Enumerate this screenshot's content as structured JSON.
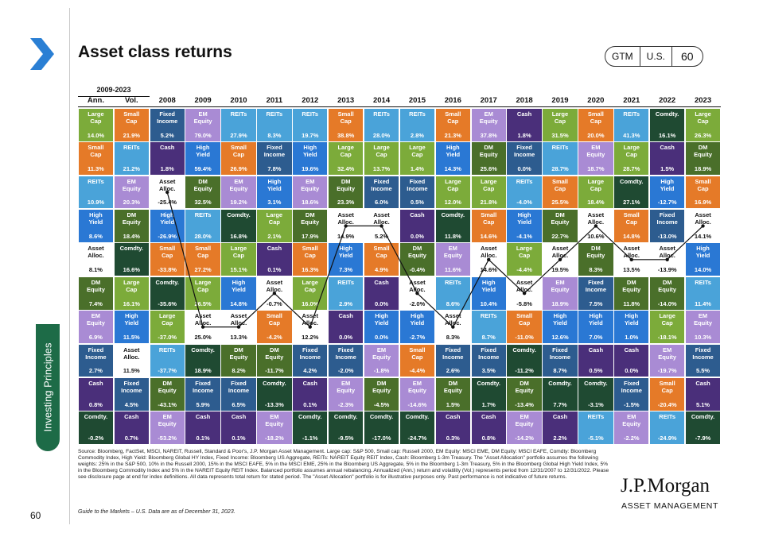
{
  "page": {
    "title": "Asset class returns",
    "badges": [
      "GTM",
      "U.S.",
      "60"
    ],
    "side_label": "Investing Principles",
    "page_number": "60",
    "source": "Source: Bloomberg, FactSet, MSCI, NAREIT, Russell, Standard & Poor's, J.P. Morgan Asset Management. Large cap: S&P 500, Small cap: Russell 2000, EM Equity: MSCI EME, DM Equity: MSCI EAFE, Comdty: Bloomberg Commodity Index, High Yield: Bloomberg Global HY Index, Fixed Income: Bloomberg US Aggregate, REITs: NAREIT Equity REIT Index, Cash: Bloomberg 1-3m Treasury. The \"Asset Allocation\" portfolio assumes the following weights: 25% in the S&P 500, 10% in the Russell 2000, 15% in the MSCI EAFE, 5% in the MSCI EME, 25% in the Bloomberg US Aggregate, 5% in the Bloomberg 1-3m Treasury, 5% in the Bloomberg Global High Yield Index, 5% in the Bloomberg Commodity Index and 5% in the NAREIT Equity REIT Index. Balanced portfolio assumes annual rebalancing. Annualized (Ann.) return and volatility (Vol.) represents period from 12/31/2007 to 12/31/2022. Please see disclosure page at end for index definitions. All data represents total return for stated period. The \"Asset Allocation\" portfolio is for illustrative purposes only. Past performance is not indicative of future returns.",
    "footer": "Guide to the Markets – U.S. Data are as of December 31, 2023.",
    "logo": "J.P.Morgan",
    "logo_sub": "ASSET MANAGEMENT"
  },
  "colors": {
    "Large Cap": "#7cab3a",
    "Small Cap": "#e57a28",
    "EM Equity": "#a98bd4",
    "REITs": "#4aa3d9",
    "Fixed Income": "#2d5c8f",
    "Cash": "#4a2f7a",
    "High Yield": "#2a78d4",
    "DM Equity": "#4a6f2a",
    "Comdty.": "#1f4a32",
    "Asset Alloc.": "#ffffff"
  },
  "chart_data": {
    "type": "table",
    "title": "Asset class returns",
    "period_label": "2009-2023",
    "columns": [
      "Ann.",
      "Vol.",
      "2008",
      "2009",
      "2010",
      "2011",
      "2012",
      "2013",
      "2014",
      "2015",
      "2016",
      "2017",
      "2018",
      "2019",
      "2020",
      "2021",
      "2022",
      "2023"
    ],
    "rows": [
      [
        [
          "Large Cap",
          "14.0%"
        ],
        [
          "Small Cap",
          "21.9%"
        ],
        [
          "Fixed Income",
          "5.2%"
        ],
        [
          "EM Equity",
          "79.0%"
        ],
        [
          "REITs",
          "27.9%"
        ],
        [
          "REITs",
          "8.3%"
        ],
        [
          "REITs",
          "19.7%"
        ],
        [
          "Small Cap",
          "38.8%"
        ],
        [
          "REITs",
          "28.0%"
        ],
        [
          "REITs",
          "2.8%"
        ],
        [
          "Small Cap",
          "21.3%"
        ],
        [
          "EM Equity",
          "37.8%"
        ],
        [
          "Cash",
          "1.8%"
        ],
        [
          "Large Cap",
          "31.5%"
        ],
        [
          "Small Cap",
          "20.0%"
        ],
        [
          "REITs",
          "41.3%"
        ],
        [
          "Comdty.",
          "16.1%"
        ],
        [
          "Large Cap",
          "26.3%"
        ]
      ],
      [
        [
          "Small Cap",
          "11.3%"
        ],
        [
          "REITs",
          "21.2%"
        ],
        [
          "Cash",
          "1.8%"
        ],
        [
          "High Yield",
          "59.4%"
        ],
        [
          "Small Cap",
          "26.9%"
        ],
        [
          "Fixed Income",
          "7.8%"
        ],
        [
          "High Yield",
          "19.6%"
        ],
        [
          "Large Cap",
          "32.4%"
        ],
        [
          "Large Cap",
          "13.7%"
        ],
        [
          "Large Cap",
          "1.4%"
        ],
        [
          "High Yield",
          "14.3%"
        ],
        [
          "DM Equity",
          "25.6%"
        ],
        [
          "Fixed Income",
          "0.0%"
        ],
        [
          "REITs",
          "28.7%"
        ],
        [
          "EM Equity",
          "18.7%"
        ],
        [
          "Large Cap",
          "28.7%"
        ],
        [
          "Cash",
          "1.5%"
        ],
        [
          "DM Equity",
          "18.9%"
        ]
      ],
      [
        [
          "REITs",
          "10.9%"
        ],
        [
          "EM Equity",
          "20.3%"
        ],
        [
          "Asset Alloc.",
          "-25.4%"
        ],
        [
          "DM Equity",
          "32.5%"
        ],
        [
          "EM Equity",
          "19.2%"
        ],
        [
          "High Yield",
          "3.1%"
        ],
        [
          "EM Equity",
          "18.6%"
        ],
        [
          "DM Equity",
          "23.3%"
        ],
        [
          "Fixed Income",
          "6.0%"
        ],
        [
          "Fixed Income",
          "0.5%"
        ],
        [
          "Large Cap",
          "12.0%"
        ],
        [
          "Large Cap",
          "21.8%"
        ],
        [
          "REITs",
          "-4.0%"
        ],
        [
          "Small Cap",
          "25.5%"
        ],
        [
          "Large Cap",
          "18.4%"
        ],
        [
          "Comdty.",
          "27.1%"
        ],
        [
          "High Yield",
          "-12.7%"
        ],
        [
          "Small Cap",
          "16.9%"
        ]
      ],
      [
        [
          "High Yield",
          "8.6%"
        ],
        [
          "DM Equity",
          "18.4%"
        ],
        [
          "High Yield",
          "-26.9%"
        ],
        [
          "REITs",
          "28.0%"
        ],
        [
          "Comdty.",
          "16.8%"
        ],
        [
          "Large Cap",
          "2.1%"
        ],
        [
          "DM Equity",
          "17.9%"
        ],
        [
          "Asset Alloc.",
          "14.9%"
        ],
        [
          "Asset Alloc.",
          "5.2%"
        ],
        [
          "Cash",
          "0.0%"
        ],
        [
          "Comdty.",
          "11.8%"
        ],
        [
          "Small Cap",
          "14.6%"
        ],
        [
          "High Yield",
          "-4.1%"
        ],
        [
          "DM Equity",
          "22.7%"
        ],
        [
          "Asset Alloc.",
          "10.6%"
        ],
        [
          "Small Cap",
          "14.8%"
        ],
        [
          "Fixed Income",
          "-13.0%"
        ],
        [
          "Asset Alloc.",
          "14.1%"
        ]
      ],
      [
        [
          "Asset Alloc.",
          "8.1%"
        ],
        [
          "Comdty.",
          "16.6%"
        ],
        [
          "Small Cap",
          "-33.8%"
        ],
        [
          "Small Cap",
          "27.2%"
        ],
        [
          "Large Cap",
          "15.1%"
        ],
        [
          "Cash",
          "0.1%"
        ],
        [
          "Small Cap",
          "16.3%"
        ],
        [
          "High Yield",
          "7.3%"
        ],
        [
          "Small Cap",
          "4.9%"
        ],
        [
          "DM Equity",
          "-0.4%"
        ],
        [
          "EM Equity",
          "11.6%"
        ],
        [
          "Asset Alloc.",
          "14.6%"
        ],
        [
          "Large Cap",
          "-4.4%"
        ],
        [
          "Asset Alloc.",
          "19.5%"
        ],
        [
          "DM Equity",
          "8.3%"
        ],
        [
          "Asset Alloc.",
          "13.5%"
        ],
        [
          "Asset Alloc.",
          "-13.9%"
        ],
        [
          "High Yield",
          "14.0%"
        ]
      ],
      [
        [
          "DM Equity",
          "7.4%"
        ],
        [
          "Large Cap",
          "16.1%"
        ],
        [
          "Comdty.",
          "-35.6%"
        ],
        [
          "Large Cap",
          "26.5%"
        ],
        [
          "High Yield",
          "14.8%"
        ],
        [
          "Asset Alloc.",
          "-0.7%"
        ],
        [
          "Large Cap",
          "16.0%"
        ],
        [
          "REITs",
          "2.9%"
        ],
        [
          "Cash",
          "0.0%"
        ],
        [
          "Asset Alloc.",
          "-2.0%"
        ],
        [
          "REITs",
          "8.6%"
        ],
        [
          "High Yield",
          "10.4%"
        ],
        [
          "Asset Alloc.",
          "-5.8%"
        ],
        [
          "EM Equity",
          "18.9%"
        ],
        [
          "Fixed Income",
          "7.5%"
        ],
        [
          "DM Equity",
          "11.8%"
        ],
        [
          "DM Equity",
          "-14.0%"
        ],
        [
          "REITs",
          "11.4%"
        ]
      ],
      [
        [
          "EM Equity",
          "6.9%"
        ],
        [
          "High Yield",
          "11.5%"
        ],
        [
          "Large Cap",
          "-37.0%"
        ],
        [
          "Asset Alloc.",
          "25.0%"
        ],
        [
          "Asset Alloc.",
          "13.3%"
        ],
        [
          "Small Cap",
          "-4.2%"
        ],
        [
          "Asset Alloc.",
          "12.2%"
        ],
        [
          "Cash",
          "0.0%"
        ],
        [
          "High Yield",
          "0.0%"
        ],
        [
          "High Yield",
          "-2.7%"
        ],
        [
          "Asset Alloc.",
          "8.3%"
        ],
        [
          "REITs",
          "8.7%"
        ],
        [
          "Small Cap",
          "-11.0%"
        ],
        [
          "High Yield",
          "12.6%"
        ],
        [
          "High Yield",
          "7.0%"
        ],
        [
          "High Yield",
          "1.0%"
        ],
        [
          "Large Cap",
          "-18.1%"
        ],
        [
          "EM Equity",
          "10.3%"
        ]
      ],
      [
        [
          "Fixed Income",
          "2.7%"
        ],
        [
          "Asset Alloc.",
          "11.5%"
        ],
        [
          "REITs",
          "-37.7%"
        ],
        [
          "Comdty.",
          "18.9%"
        ],
        [
          "DM Equity",
          "8.2%"
        ],
        [
          "DM Equity",
          "-11.7%"
        ],
        [
          "Fixed Income",
          "4.2%"
        ],
        [
          "Fixed Income",
          "-2.0%"
        ],
        [
          "EM Equity",
          "-1.8%"
        ],
        [
          "Small Cap",
          "-4.4%"
        ],
        [
          "Fixed Income",
          "2.6%"
        ],
        [
          "Fixed Income",
          "3.5%"
        ],
        [
          "Comdty.",
          "-11.2%"
        ],
        [
          "Fixed Income",
          "8.7%"
        ],
        [
          "Cash",
          "0.5%"
        ],
        [
          "Cash",
          "0.0%"
        ],
        [
          "EM Equity",
          "-19.7%"
        ],
        [
          "Fixed Income",
          "5.5%"
        ]
      ],
      [
        [
          "Cash",
          "0.8%"
        ],
        [
          "Fixed Income",
          "4.5%"
        ],
        [
          "DM Equity",
          "-43.1%"
        ],
        [
          "Fixed Income",
          "5.9%"
        ],
        [
          "Fixed Income",
          "6.5%"
        ],
        [
          "Comdty.",
          "-13.3%"
        ],
        [
          "Cash",
          "0.1%"
        ],
        [
          "EM Equity",
          "-2.3%"
        ],
        [
          "DM Equity",
          "-4.5%"
        ],
        [
          "EM Equity",
          "-14.6%"
        ],
        [
          "DM Equity",
          "1.5%"
        ],
        [
          "Comdty.",
          "1.7%"
        ],
        [
          "DM Equity",
          "-13.4%"
        ],
        [
          "Comdty.",
          "7.7%"
        ],
        [
          "Comdty.",
          "-3.1%"
        ],
        [
          "Fixed Income",
          "-1.5%"
        ],
        [
          "Small Cap",
          "-20.4%"
        ],
        [
          "Cash",
          "5.1%"
        ]
      ],
      [
        [
          "Comdty.",
          "-0.2%"
        ],
        [
          "Cash",
          "0.7%"
        ],
        [
          "EM Equity",
          "-53.2%"
        ],
        [
          "Cash",
          "0.1%"
        ],
        [
          "Cash",
          "0.1%"
        ],
        [
          "EM Equity",
          "-18.2%"
        ],
        [
          "Comdty.",
          "-1.1%"
        ],
        [
          "Comdty.",
          "-9.5%"
        ],
        [
          "Comdty.",
          "-17.0%"
        ],
        [
          "Comdty.",
          "-24.7%"
        ],
        [
          "Cash",
          "0.3%"
        ],
        [
          "Cash",
          "0.8%"
        ],
        [
          "EM Equity",
          "-14.2%"
        ],
        [
          "Cash",
          "2.2%"
        ],
        [
          "REITs",
          "-5.1%"
        ],
        [
          "EM Equity",
          "-2.2%"
        ],
        [
          "REITs",
          "-24.9%"
        ],
        [
          "Comdty.",
          "-7.9%"
        ]
      ]
    ]
  }
}
